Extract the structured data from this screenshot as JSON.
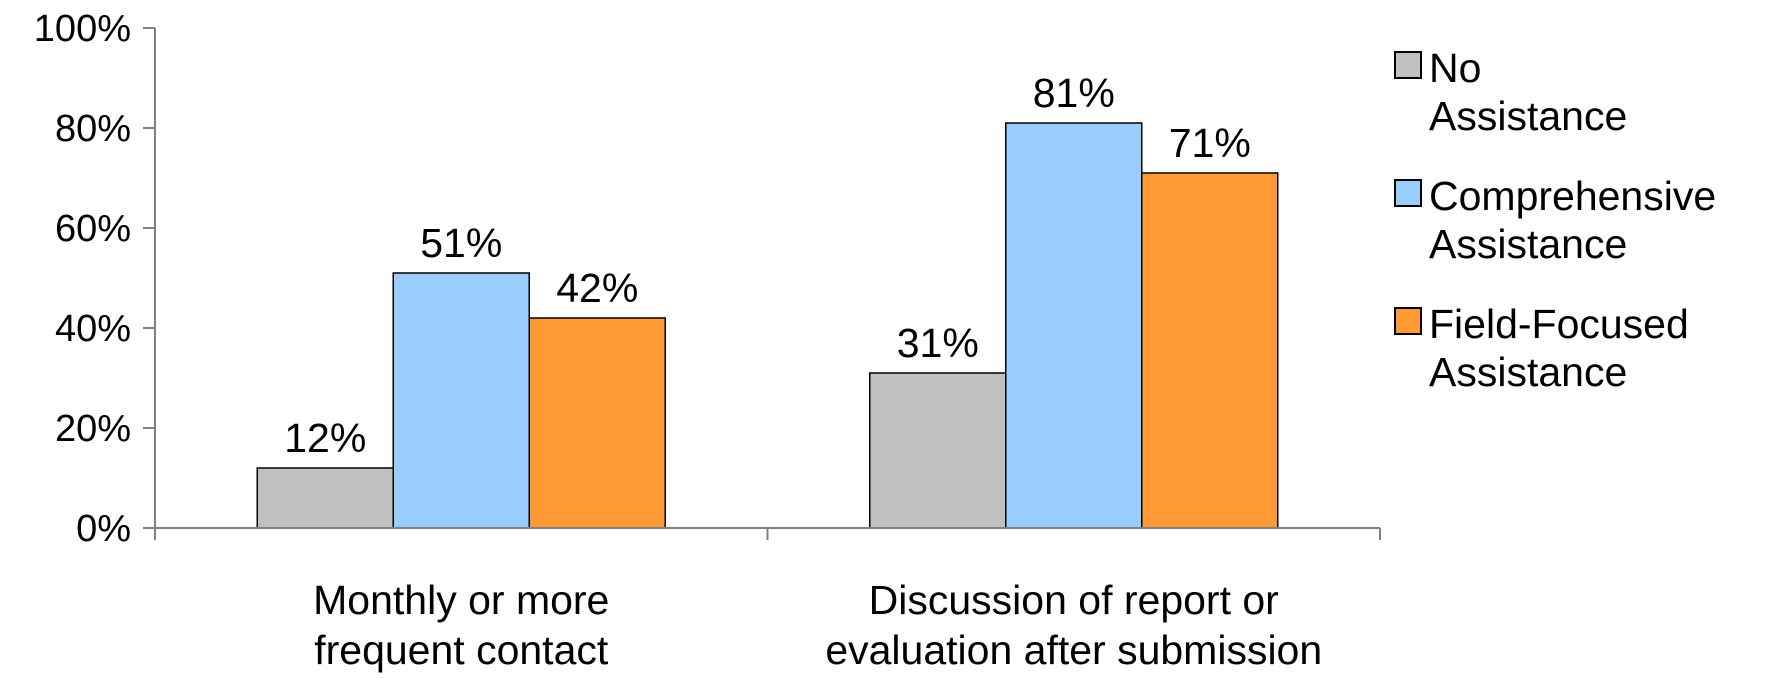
{
  "chart_data": {
    "type": "bar",
    "title": "",
    "xlabel": "",
    "ylabel": "",
    "ylim": [
      0,
      100
    ],
    "y_ticks": [
      0,
      20,
      40,
      60,
      80,
      100
    ],
    "y_tick_labels": [
      "0%",
      "20%",
      "40%",
      "60%",
      "80%",
      "100%"
    ],
    "grid": false,
    "legend_position": "right",
    "categories": [
      [
        "Monthly or more",
        "frequent contact"
      ],
      [
        "Discussion of report or",
        "evaluation after submission"
      ]
    ],
    "series": [
      {
        "name": [
          "No",
          "Assistance"
        ],
        "color": "#C0C0C0",
        "values": [
          12,
          31
        ],
        "labels": [
          "12%",
          "31%"
        ]
      },
      {
        "name": [
          "Comprehensive",
          "Assistance"
        ],
        "color": "#99CCFF",
        "values": [
          51,
          81
        ],
        "labels": [
          "51%",
          "81%"
        ]
      },
      {
        "name": [
          "Field-Focused",
          "Assistance"
        ],
        "color": "#FF9933",
        "values": [
          42,
          71
        ],
        "labels": [
          "42%",
          "71%"
        ]
      }
    ]
  }
}
